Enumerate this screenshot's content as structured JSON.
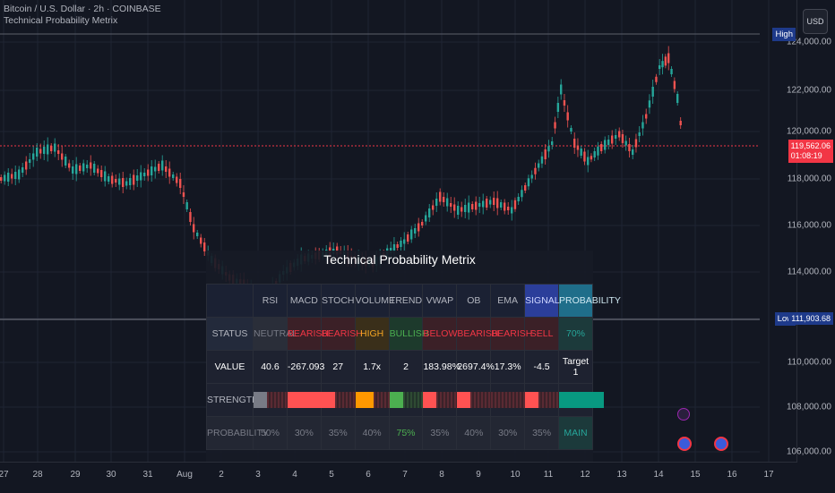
{
  "header": {
    "symbol": "Bitcoin / U.S. Dollar · 2h · COINBASE",
    "indicator": "Technical Probability Metrix"
  },
  "currency": "USD",
  "price_axis": {
    "ticks": [
      "124,000.00",
      "122,000.00",
      "120,000.00",
      "118,000.00",
      "116,000.00",
      "114,000.00",
      "110,000.00",
      "108,000.00",
      "106,000.00"
    ],
    "high_label": "High",
    "low_label": "Low",
    "low_value": "111,903.68",
    "current_price": "119,562.06",
    "countdown": "01:08:19"
  },
  "time_axis": {
    "ticks": [
      "27",
      "28",
      "29",
      "30",
      "31",
      "Aug",
      "2",
      "3",
      "4",
      "5",
      "6",
      "7",
      "8",
      "9",
      "10",
      "11",
      "12",
      "13",
      "14",
      "15",
      "16",
      "17"
    ]
  },
  "colors": {
    "bull": "#26a69a",
    "bear": "#ef5350",
    "accent": "#2962ff"
  },
  "matrix": {
    "title": "Technical Probability Metrix",
    "columns": [
      "RSI",
      "MACD",
      "STOCH",
      "VOLUME",
      "TREND",
      "VWAP",
      "OB",
      "EMA",
      "SIGNAL",
      "PROBABILITY"
    ],
    "status_label": "STATUS",
    "status": [
      "NEUTRAL",
      "BEARISH",
      "BEARISH",
      "HIGH",
      "BULLISH",
      "BELOW",
      "BEARISH",
      "BEARISH",
      "SELL",
      "70%"
    ],
    "value_label": "VALUE",
    "values": [
      "40.6",
      "-267.093",
      "27",
      "1.7x",
      "2",
      "183.98%",
      "2697.4%",
      "17.3%",
      "-4.5",
      "Target 1"
    ],
    "strength_label": "STRENGTH",
    "strength": [
      0.3,
      1.0,
      0.3,
      0.4,
      0.3,
      0.3,
      0.3,
      0.0,
      0.3,
      1.0
    ],
    "probability_label": "PROBABILITY",
    "probability": [
      "50%",
      "30%",
      "35%",
      "40%",
      "75%",
      "35%",
      "40%",
      "30%",
      "35%",
      "MAIN"
    ]
  }
}
